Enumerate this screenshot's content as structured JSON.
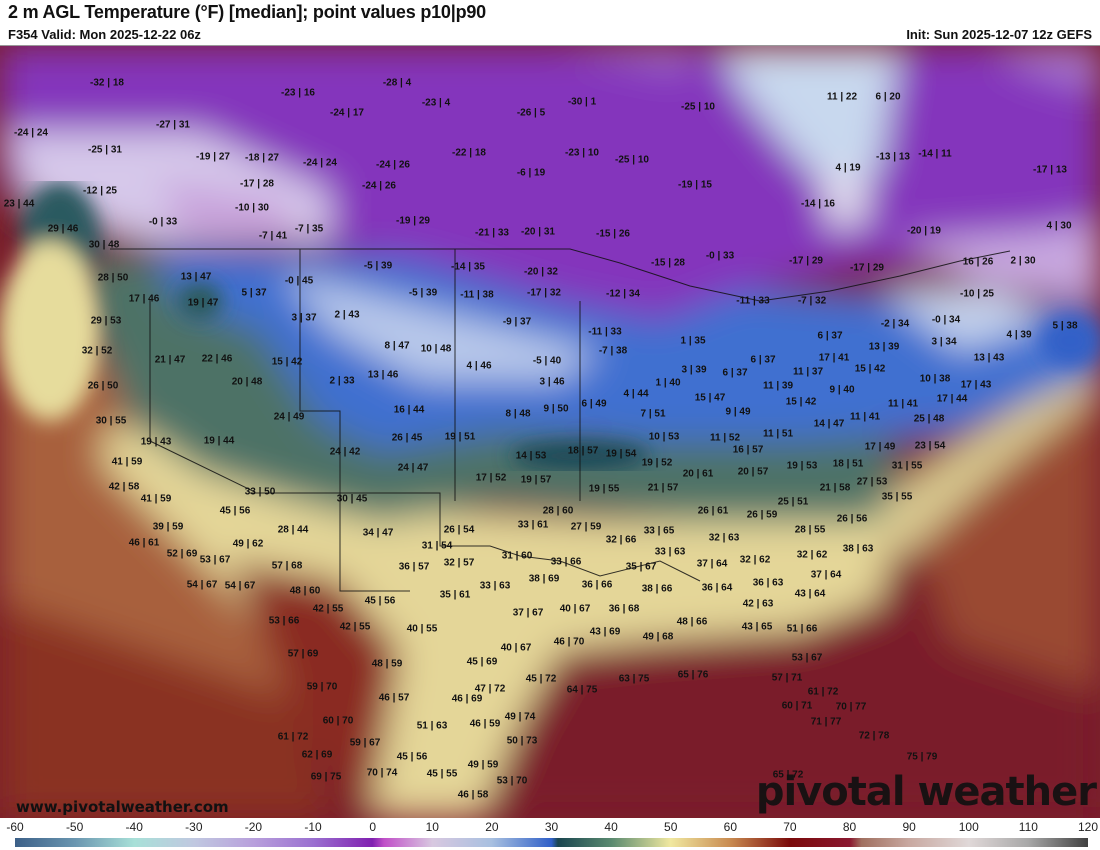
{
  "header": {
    "title": "2 m AGL Temperature (°F) [median]; point values p10|p90",
    "valid": "F354 Valid: Mon 2025-12-22 06z",
    "init": "Init: Sun 2025-12-07 12z GEFS"
  },
  "watermark": {
    "site": "www.pivotalweather.com",
    "logo": "pivotal weather"
  },
  "colorbar": {
    "units": "°F",
    "labels": [
      "-60",
      "-50",
      "-40",
      "-30",
      "-20",
      "-10",
      "0",
      "10",
      "20",
      "30",
      "40",
      "50",
      "60",
      "70",
      "80",
      "90",
      "100",
      "110",
      "120"
    ],
    "range": [
      -60,
      120
    ]
  },
  "point_values": [
    "-32 | 18",
    "-23 | 16",
    "-24 | 17",
    "-27 | 31",
    "-24 | 24",
    "-25 | 31",
    "-19 | 27",
    "-18 | 27",
    "-24 | 24",
    "-17 | 28",
    "-12 | 25",
    "-10 | 30",
    "23 | 44",
    "-0 | 33",
    "-7 | 41",
    "-7 | 35",
    "29 | 46",
    "30 | 48",
    "28 | 50",
    "13 | 47",
    "17 | 46",
    "19 | 47",
    "5 | 37",
    "-0 | 45",
    "-28 | 4",
    "-23 | 4",
    "-30 | 1",
    "-26 | 5",
    "-25 | 10",
    "-24 | 26",
    "-22 | 18",
    "-6 | 19",
    "-23 | 10",
    "-25 | 10",
    "-24 | 26",
    "-19 | 15",
    "-19 | 29",
    "-21 | 33",
    "-20 | 31",
    "-15 | 26",
    "-5 | 39",
    "-14 | 35",
    "-20 | 32",
    "-15 | 28",
    "-0 | 33",
    "-5 | 39",
    "-11 | 38",
    "-17 | 32",
    "-12 | 34",
    "11 | 22",
    "6 | 20",
    "-13 | 13",
    "-14 | 11",
    "4 | 19",
    "-17 | 13",
    "-14 | 16",
    "-20 | 19",
    "4 | 30",
    "-17 | 29",
    "-17 | 29",
    "16 | 26",
    "2 | 30",
    "-10 | 25",
    "-7 | 32",
    "-11 | 33",
    "29 | 53",
    "3 | 37",
    "2 | 43",
    "32 | 52",
    "21 | 47",
    "22 | 46",
    "15 | 42",
    "20 | 48",
    "2 | 33",
    "26 | 50",
    "24 | 49",
    "30 | 55",
    "19 | 43",
    "19 | 44",
    "24 | 42",
    "41 | 59",
    "42 | 58",
    "41 | 59",
    "33 | 50",
    "30 | 45",
    "45 | 56",
    "39 | 59",
    "28 | 44",
    "46 | 61",
    "49 | 62",
    "-9 | 37",
    "-11 | 33",
    "8 | 47",
    "10 | 48",
    "-7 | 38",
    "-5 | 40",
    "1 | 35",
    "4 | 46",
    "13 | 46",
    "3 | 46",
    "3 | 39",
    "1 | 40",
    "4 | 44",
    "15 | 47",
    "6 | 49",
    "9 | 50",
    "16 | 44",
    "8 | 48",
    "7 | 51",
    "26 | 45",
    "19 | 51",
    "10 | 53",
    "11 | 52",
    "18 | 57",
    "14 | 53",
    "19 | 54",
    "19 | 52",
    "24 | 47",
    "20 | 61",
    "17 | 52",
    "19 | 57",
    "19 | 55",
    "21 | 57",
    "28 | 60",
    "26 | 61",
    "34 | 47",
    "26 | 54",
    "33 | 61",
    "27 | 59",
    "33 | 65",
    "32 | 66",
    "32 | 63",
    "31 | 54",
    "33 | 63",
    "-2 | 34",
    "-0 | 34",
    "5 | 38",
    "6 | 37",
    "4 | 39",
    "3 | 34",
    "13 | 39",
    "6 | 37",
    "17 | 41",
    "13 | 43",
    "6 | 37",
    "11 | 37",
    "15 | 42",
    "10 | 38",
    "11 | 39",
    "17 | 43",
    "9 | 40",
    "17 | 44",
    "15 | 42",
    "11 | 41",
    "9 | 49",
    "11 | 41",
    "25 | 48",
    "14 | 47",
    "11 | 51",
    "17 | 49",
    "23 | 54",
    "16 | 57",
    "18 | 51",
    "19 | 53",
    "20 | 57",
    "31 | 55",
    "27 | 53",
    "21 | 58",
    "35 | 55",
    "25 | 51",
    "26 | 59",
    "26 | 56",
    "28 | 55",
    "38 | 63",
    "52 | 69",
    "53 | 67",
    "57 | 68",
    "54 | 67",
    "54 | 67",
    "48 | 60",
    "42 | 55",
    "42 | 55",
    "53 | 66",
    "57 | 69",
    "59 | 70",
    "60 | 70",
    "61 | 72",
    "62 | 69",
    "69 | 75",
    "59 | 67",
    "70 | 74",
    "36 | 57",
    "32 | 57",
    "31 | 60",
    "33 | 66",
    "35 | 67",
    "37 | 64",
    "38 | 69",
    "33 | 63",
    "36 | 66",
    "38 | 66",
    "36 | 64",
    "35 | 61",
    "45 | 56",
    "37 | 67",
    "40 | 67",
    "36 | 68",
    "40 | 55",
    "48 | 66",
    "43 | 69",
    "49 | 68",
    "46 | 70",
    "40 | 67",
    "45 | 69",
    "48 | 59",
    "47 | 72",
    "45 | 72",
    "64 | 75",
    "63 | 75",
    "65 | 76",
    "46 | 57",
    "46 | 69",
    "49 | 74",
    "51 | 63",
    "46 | 59",
    "50 | 73",
    "45 | 56",
    "49 | 59",
    "45 | 55",
    "53 | 70",
    "46 | 58",
    "32 | 62",
    "32 | 62",
    "37 | 64",
    "36 | 63",
    "43 | 64",
    "42 | 63",
    "43 | 65",
    "51 | 66",
    "53 | 67",
    "57 | 71",
    "61 | 72",
    "60 | 71",
    "70 | 77",
    "71 | 77",
    "72 | 78",
    "75 | 79",
    "65 | 72"
  ]
}
